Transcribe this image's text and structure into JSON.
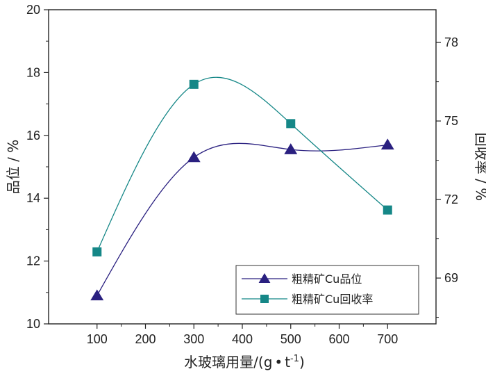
{
  "chart_data": {
    "type": "line",
    "title": "",
    "x": [
      100,
      300,
      500,
      700
    ],
    "xlim": [
      0,
      800
    ],
    "xticks": [
      "100",
      "200",
      "300",
      "400",
      "500",
      "600",
      "700"
    ],
    "xtick_values": [
      100,
      200,
      300,
      400,
      500,
      600,
      700
    ],
    "xlabel_text": "水玻璃用量/(g",
    "xlabel_sep": "t",
    "xlabel_exp": "-1",
    "xlabel_close": ")",
    "ylabel_left": "品位 / %",
    "ylim_left": [
      10,
      20
    ],
    "yticks_left": [
      "10",
      "12",
      "14",
      "16",
      "18",
      "20"
    ],
    "ytick_values_left": [
      10,
      12,
      14,
      16,
      18,
      20
    ],
    "ylabel_right": "回收率 / %",
    "ylim_right": [
      67.25,
      79.25
    ],
    "yticks_right": [
      "69",
      "72",
      "75",
      "78"
    ],
    "ytick_values_right": [
      69,
      72,
      75,
      78
    ],
    "legend_position": "bottom-right",
    "series": [
      {
        "name": "粗精矿Cu品位",
        "axis": "left",
        "marker": "triangle",
        "color": "#2a2080",
        "values": [
          10.9,
          15.3,
          15.55,
          15.7
        ]
      },
      {
        "name": "粗精矿Cu回收率",
        "axis": "right",
        "marker": "square",
        "color": "#158787",
        "values": [
          70.0,
          76.4,
          74.9,
          71.6
        ]
      }
    ]
  }
}
